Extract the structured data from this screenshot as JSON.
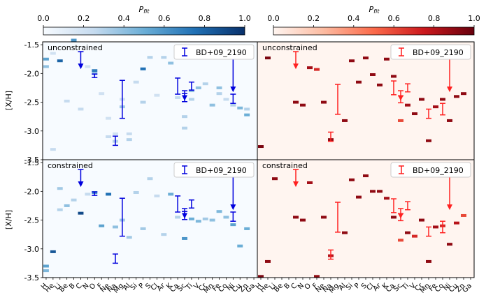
{
  "figure": {
    "ylabel": "[X/H]",
    "y_ticks": [
      "-1.5",
      "-2.0",
      "-2.5",
      "-3.0",
      "-3.5"
    ],
    "colorbar_ticks": [
      "0.0",
      "0.2",
      "0.4",
      "0.6",
      "0.8",
      "1.0"
    ],
    "colorbar_label": "P",
    "colorbar_label_sub": "fit",
    "legend_label": "BD+09_2190",
    "elements": [
      "H",
      "He",
      "Li",
      "Be",
      "B",
      "C",
      "N",
      "O",
      "F",
      "Ne",
      "Na",
      "Mg",
      "Al",
      "Si",
      "P",
      "S",
      "Cl",
      "Ar",
      "K",
      "Ca",
      "Sc",
      "Ti",
      "V",
      "Cr",
      "Mn",
      "Fe",
      "Co",
      "Ni",
      "Cu",
      "Zn",
      "Ga"
    ]
  },
  "panels": [
    {
      "id": "tl",
      "title": "unconstrained",
      "cmap": "blues"
    },
    {
      "id": "tr",
      "title": "unconstrained",
      "cmap": "reds"
    },
    {
      "id": "bl",
      "title": "constrained",
      "cmap": "blues"
    },
    {
      "id": "br",
      "title": "constrained",
      "cmap": "reds"
    }
  ],
  "chart_data": {
    "type": "heatmap",
    "x": [
      "H",
      "He",
      "Li",
      "Be",
      "B",
      "C",
      "N",
      "O",
      "F",
      "Ne",
      "Na",
      "Mg",
      "Al",
      "Si",
      "P",
      "S",
      "Cl",
      "Ar",
      "K",
      "Ca",
      "Sc",
      "Ti",
      "V",
      "Cr",
      "Mn",
      "Fe",
      "Co",
      "Ni",
      "Cu",
      "Zn",
      "Ga"
    ],
    "ylim": [
      -3.5,
      -1.45
    ],
    "colorbar_range": [
      0.0,
      1.0
    ],
    "observations": {
      "name": "BD+09_2190",
      "errorbars": [
        {
          "el": "O",
          "center": -2.04,
          "err": 0.03
        },
        {
          "el": "Na",
          "center": -3.17,
          "err": 0.08
        },
        {
          "el": "Mg",
          "center": -2.45,
          "err": 0.33
        },
        {
          "el": "Ca",
          "center": -2.22,
          "err": 0.14
        },
        {
          "el": "Sc",
          "center": -2.42,
          "err": 0.07
        },
        {
          "el": "Ti",
          "center": -2.22,
          "err": 0.07
        },
        {
          "el": "Ni",
          "center": -2.44,
          "err": 0.08
        }
      ],
      "upper_limits": [
        {
          "el": "C",
          "value": -1.62,
          "to": -1.9
        },
        {
          "el": "Sc",
          "value": -2.3,
          "to": -2.45
        },
        {
          "el": "Ni",
          "value": -1.68,
          "to": -2.3
        }
      ],
      "red_errorbars": [
        {
          "el": "Na",
          "center": -3.1,
          "err": 0.08
        },
        {
          "el": "Mg",
          "center": -2.45,
          "err": 0.26
        },
        {
          "el": "Ca",
          "center": -2.25,
          "err": 0.12
        },
        {
          "el": "Sc",
          "center": -2.45,
          "err": 0.06
        },
        {
          "el": "Ti",
          "center": -2.25,
          "err": 0.07
        },
        {
          "el": "Mn",
          "center": -2.7,
          "err": 0.08
        },
        {
          "el": "Co",
          "center": -2.62,
          "err": 0.1
        }
      ]
    },
    "series": [
      {
        "name": "top-left (unconstrained, blue)",
        "cells": [
          [
            "H",
            -1.75,
            0.55
          ],
          [
            "H",
            -1.88,
            0.4
          ],
          [
            "He",
            -1.65,
            0.2
          ],
          [
            "He",
            -3.32,
            0.25
          ],
          [
            "Li",
            -1.78,
            0.8
          ],
          [
            "Be",
            -2.48,
            0.25
          ],
          [
            "B",
            -1.42,
            0.6
          ],
          [
            "C",
            -2.62,
            0.25
          ],
          [
            "N",
            -1.88,
            0.2
          ],
          [
            "O",
            -1.95,
            0.7
          ],
          [
            "O",
            -2.0,
            0.4
          ],
          [
            "F",
            -2.35,
            0.2
          ],
          [
            "Ne",
            -2.78,
            0.2
          ],
          [
            "Ne",
            -3.1,
            0.25
          ],
          [
            "Na",
            -3.05,
            0.2
          ],
          [
            "Na",
            -3.18,
            0.3
          ],
          [
            "Mg",
            -2.58,
            0.35
          ],
          [
            "Mg",
            -2.45,
            0.2
          ],
          [
            "Al",
            -3.05,
            0.25
          ],
          [
            "Al",
            -3.15,
            0.3
          ],
          [
            "Si",
            -2.15,
            0.25
          ],
          [
            "P",
            -1.92,
            0.75
          ],
          [
            "P",
            -2.5,
            0.3
          ],
          [
            "S",
            -1.72,
            0.3
          ],
          [
            "Cl",
            -2.38,
            0.2
          ],
          [
            "Ar",
            -1.72,
            0.3
          ],
          [
            "K",
            -1.82,
            0.4
          ],
          [
            "Ca",
            -2.42,
            0.25
          ],
          [
            "Sc",
            -2.75,
            0.3
          ],
          [
            "Sc",
            -2.95,
            0.3
          ],
          [
            "Ti",
            -2.3,
            0.4
          ],
          [
            "Ti",
            -2.45,
            0.3
          ],
          [
            "V",
            -2.25,
            0.4
          ],
          [
            "Cr",
            -2.18,
            0.3
          ],
          [
            "Mn",
            -2.55,
            0.4
          ],
          [
            "Fe",
            -2.25,
            0.4
          ],
          [
            "Fe",
            -2.35,
            0.3
          ],
          [
            "Co",
            -2.45,
            0.25
          ],
          [
            "Ni",
            -2.55,
            0.3
          ],
          [
            "Cu",
            -2.6,
            0.45
          ],
          [
            "Zn",
            -2.72,
            0.5
          ],
          [
            "Zn",
            -2.62,
            0.3
          ]
        ]
      },
      {
        "name": "top-right (unconstrained, red)",
        "cells": [
          [
            "H",
            -3.27,
            0.95
          ],
          [
            "He",
            -1.73,
            0.95
          ],
          [
            "C",
            -2.5,
            0.9
          ],
          [
            "N",
            -2.55,
            0.9
          ],
          [
            "O",
            -1.9,
            0.85
          ],
          [
            "F",
            -1.93,
            0.7
          ],
          [
            "Ne",
            -2.5,
            0.9
          ],
          [
            "Na",
            -3.15,
            0.9
          ],
          [
            "Al",
            -2.82,
            0.9
          ],
          [
            "Si",
            -1.78,
            0.9
          ],
          [
            "P",
            -2.15,
            0.9
          ],
          [
            "S",
            -1.73,
            0.9
          ],
          [
            "Cl",
            -2.02,
            0.9
          ],
          [
            "Ar",
            -2.2,
            0.9
          ],
          [
            "K",
            -1.75,
            0.9
          ],
          [
            "Ca",
            -2.05,
            0.9
          ],
          [
            "Sc",
            -2.82,
            0.6
          ],
          [
            "Ti",
            -2.55,
            0.85
          ],
          [
            "V",
            -2.7,
            0.9
          ],
          [
            "Cr",
            -2.45,
            0.9
          ],
          [
            "Mn",
            -3.17,
            0.9
          ],
          [
            "Fe",
            -2.58,
            0.85
          ],
          [
            "Co",
            -2.45,
            0.9
          ],
          [
            "Ni",
            -2.82,
            0.9
          ],
          [
            "Cu",
            -2.4,
            0.9
          ],
          [
            "Zn",
            -2.35,
            0.9
          ]
        ]
      },
      {
        "name": "bottom-left (constrained, blue)",
        "cells": [
          [
            "H",
            -3.3,
            0.55
          ],
          [
            "H",
            -3.38,
            0.45
          ],
          [
            "He",
            -3.05,
            0.85
          ],
          [
            "Li",
            -1.95,
            0.35
          ],
          [
            "Li",
            -2.32,
            0.3
          ],
          [
            "Be",
            -2.25,
            0.4
          ],
          [
            "B",
            -2.15,
            0.3
          ],
          [
            "C",
            -2.38,
            0.9
          ],
          [
            "N",
            -2.05,
            0.25
          ],
          [
            "O",
            -2.02,
            0.6
          ],
          [
            "F",
            -2.6,
            0.55
          ],
          [
            "Ne",
            -2.05,
            0.75
          ],
          [
            "Na",
            -2.62,
            0.4
          ],
          [
            "Mg",
            -2.5,
            0.35
          ],
          [
            "Al",
            -2.8,
            0.35
          ],
          [
            "Si",
            -2.02,
            0.3
          ],
          [
            "P",
            -2.65,
            0.35
          ],
          [
            "S",
            -1.78,
            0.3
          ],
          [
            "Cl",
            -2.08,
            0.25
          ],
          [
            "Ar",
            -2.75,
            0.3
          ],
          [
            "K",
            -2.05,
            0.5
          ],
          [
            "Ca",
            -2.45,
            0.3
          ],
          [
            "Sc",
            -2.82,
            0.6
          ],
          [
            "Ti",
            -2.48,
            0.5
          ],
          [
            "V",
            -2.52,
            0.45
          ],
          [
            "Cr",
            -2.48,
            0.35
          ],
          [
            "Mn",
            -2.5,
            0.4
          ],
          [
            "Fe",
            -2.35,
            0.45
          ],
          [
            "Co",
            -2.45,
            0.4
          ],
          [
            "Ni",
            -2.58,
            0.55
          ],
          [
            "Cu",
            -2.95,
            0.5
          ],
          [
            "Zn",
            -2.65,
            0.5
          ]
        ]
      },
      {
        "name": "bottom-right (constrained, red)",
        "cells": [
          [
            "H",
            -3.48,
            0.95
          ],
          [
            "He",
            -3.22,
            0.9
          ],
          [
            "Li",
            -1.78,
            0.9
          ],
          [
            "C",
            -2.45,
            0.9
          ],
          [
            "N",
            -2.5,
            0.9
          ],
          [
            "O",
            -1.85,
            0.85
          ],
          [
            "F",
            -3.48,
            0.9
          ],
          [
            "Ne",
            -2.45,
            0.9
          ],
          [
            "Na",
            -3.12,
            0.8
          ],
          [
            "Al",
            -2.72,
            0.9
          ],
          [
            "Si",
            -1.8,
            0.9
          ],
          [
            "P",
            -2.1,
            0.9
          ],
          [
            "S",
            -1.73,
            0.9
          ],
          [
            "Cl",
            -2.0,
            0.9
          ],
          [
            "Ar",
            -2.0,
            0.9
          ],
          [
            "K",
            -2.12,
            0.85
          ],
          [
            "Ca",
            -2.45,
            0.9
          ],
          [
            "Sc",
            -2.85,
            0.6
          ],
          [
            "Ti",
            -2.72,
            0.9
          ],
          [
            "V",
            -2.78,
            0.7
          ],
          [
            "Cr",
            -2.5,
            0.9
          ],
          [
            "Mn",
            -3.22,
            0.9
          ],
          [
            "Fe",
            -2.62,
            0.85
          ],
          [
            "Co",
            -2.6,
            0.7
          ],
          [
            "Ni",
            -2.92,
            0.9
          ],
          [
            "Cu",
            -2.55,
            0.8
          ],
          [
            "Zn",
            -2.42,
            0.6
          ]
        ]
      }
    ]
  }
}
